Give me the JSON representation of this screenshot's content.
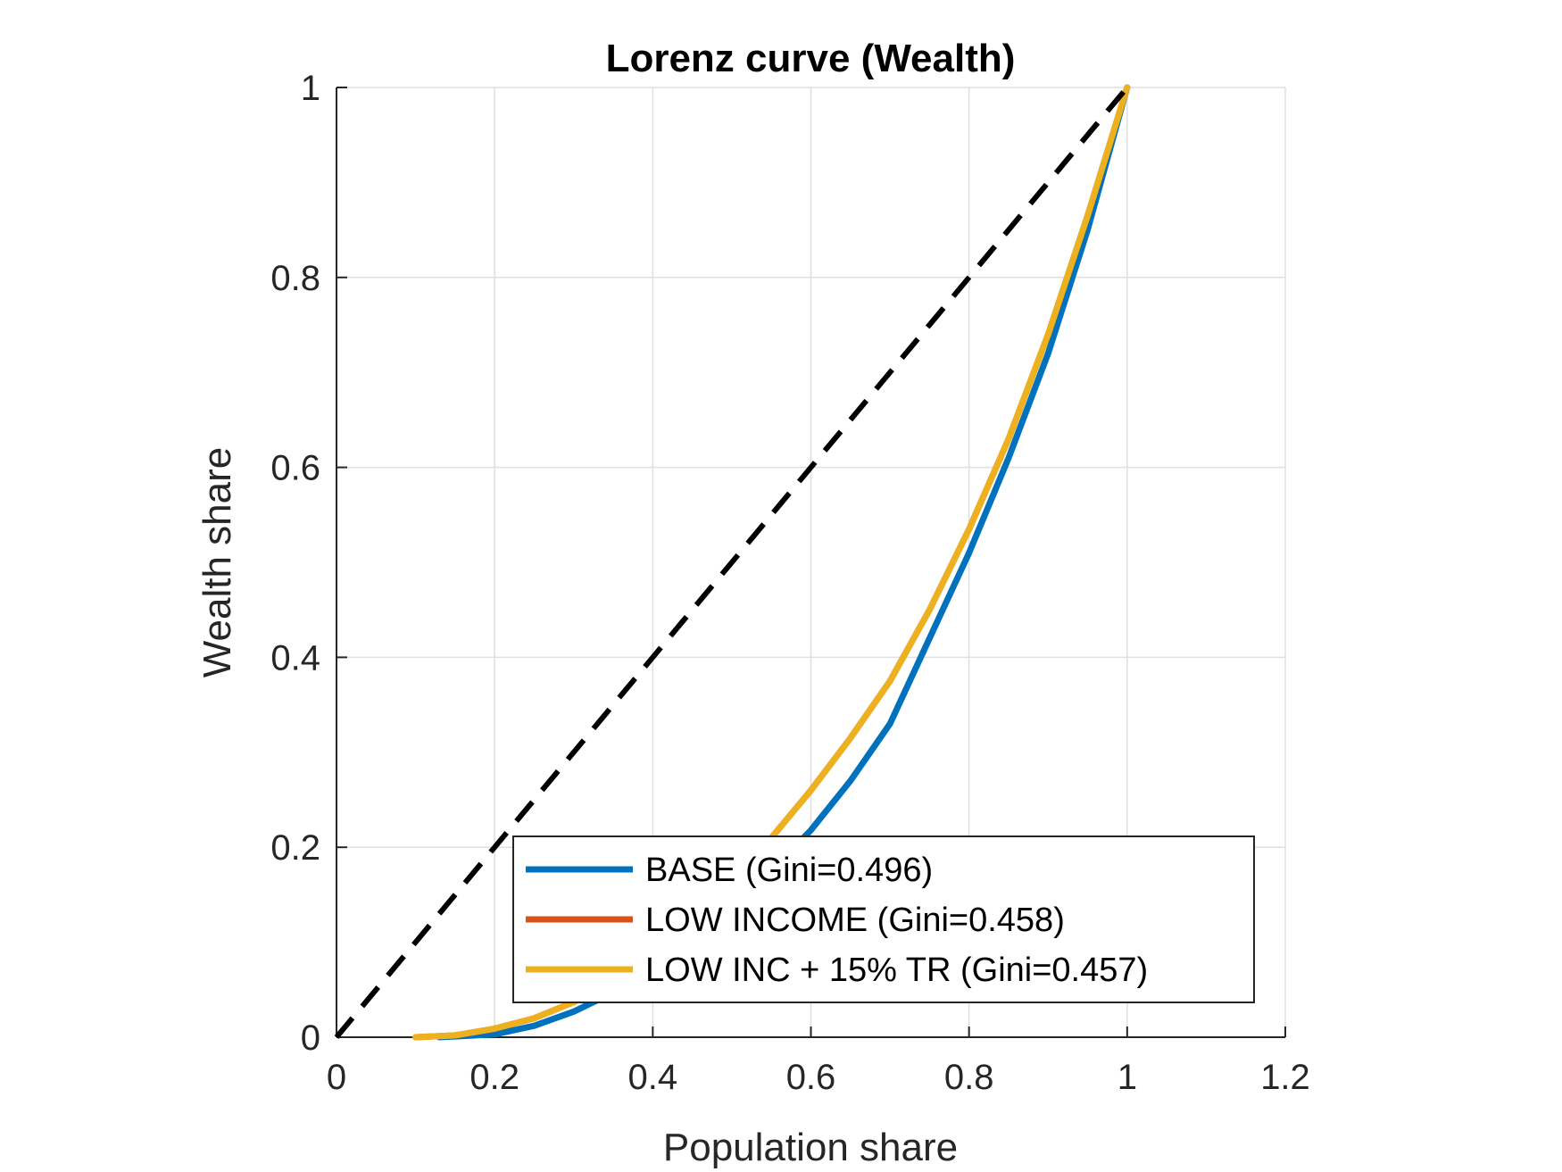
{
  "chart_data": {
    "type": "line",
    "title": "Lorenz curve (Wealth)",
    "xlabel": "Population share",
    "ylabel": "Wealth share",
    "xlim": [
      0,
      1.2
    ],
    "ylim": [
      0,
      1
    ],
    "xticks": [
      0,
      0.2,
      0.4,
      0.6,
      0.8,
      1,
      1.2
    ],
    "xtick_labels": [
      "0",
      "0.2",
      "0.4",
      "0.6",
      "0.8",
      "1",
      "1.2"
    ],
    "yticks": [
      0,
      0.2,
      0.4,
      0.6,
      0.8,
      1
    ],
    "ytick_labels": [
      "0",
      "0.2",
      "0.4",
      "0.6",
      "0.8",
      "1"
    ],
    "grid": true,
    "legend_position": "bottom-right",
    "equality_line": {
      "x": [
        0,
        1
      ],
      "y": [
        0,
        1
      ],
      "color": "#000000",
      "style": "dashed"
    },
    "series": [
      {
        "name": "BASE (Gini=0.496)",
        "color": "#0072BD",
        "x": [
          0.13,
          0.2,
          0.25,
          0.3,
          0.35,
          0.4,
          0.45,
          0.5,
          0.55,
          0.6,
          0.65,
          0.7,
          0.75,
          0.8,
          0.85,
          0.9,
          0.95,
          1.0
        ],
        "y": [
          0.0,
          0.003,
          0.012,
          0.027,
          0.047,
          0.072,
          0.101,
          0.135,
          0.175,
          0.218,
          0.27,
          0.33,
          0.42,
          0.51,
          0.61,
          0.72,
          0.85,
          1.0
        ]
      },
      {
        "name": "LOW INCOME (Gini=0.458)",
        "color": "#D95319",
        "x": [
          0.1,
          0.15,
          0.2,
          0.25,
          0.3,
          0.35,
          0.4,
          0.45,
          0.5,
          0.55,
          0.6,
          0.65,
          0.7,
          0.75,
          0.8,
          0.85,
          0.9,
          0.95,
          1.0
        ],
        "y": [
          0.0,
          0.002,
          0.009,
          0.02,
          0.037,
          0.06,
          0.09,
          0.125,
          0.165,
          0.21,
          0.26,
          0.315,
          0.375,
          0.45,
          0.535,
          0.63,
          0.74,
          0.865,
          1.0
        ]
      },
      {
        "name": "LOW INC + 15% TR (Gini=0.457)",
        "color": "#EDB120",
        "x": [
          0.1,
          0.15,
          0.2,
          0.25,
          0.3,
          0.35,
          0.4,
          0.45,
          0.5,
          0.55,
          0.6,
          0.65,
          0.7,
          0.75,
          0.8,
          0.85,
          0.9,
          0.95,
          1.0
        ],
        "y": [
          0.0,
          0.002,
          0.009,
          0.02,
          0.037,
          0.06,
          0.09,
          0.125,
          0.165,
          0.21,
          0.26,
          0.315,
          0.375,
          0.45,
          0.535,
          0.63,
          0.74,
          0.865,
          1.0
        ]
      }
    ]
  }
}
